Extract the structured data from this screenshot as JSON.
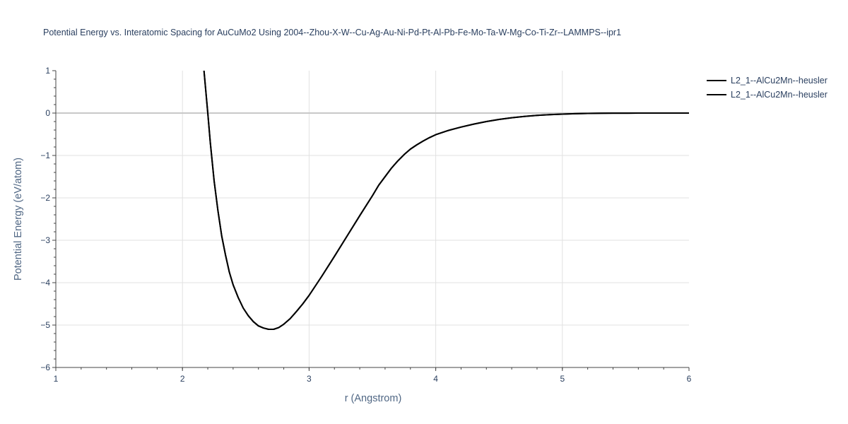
{
  "chart_data": {
    "type": "line",
    "title": "Potential Energy vs. Interatomic Spacing for AuCuMo2 Using 2004--Zhou-X-W--Cu-Ag-Au-Ni-Pd-Pt-Al-Pb-Fe-Mo-Ta-W-Mg-Co-Ti-Zr--LAMMPS--ipr1",
    "xlabel": "r (Angstrom)",
    "ylabel": "Potential Energy (eV/atom)",
    "xlim": [
      1,
      6
    ],
    "ylim": [
      -6,
      1
    ],
    "x_ticks": [
      "1",
      "2",
      "3",
      "4",
      "5",
      "6"
    ],
    "y_ticks": [
      "1",
      "0",
      "−1",
      "−2",
      "−3",
      "−4",
      "−5",
      "−6"
    ],
    "grid": true,
    "legend_position": "top-right",
    "series_color": "#000000",
    "series": [
      {
        "name": "L2_1--AlCu2Mn--heusler",
        "x": [
          2.17,
          2.2,
          2.22,
          2.25,
          2.28,
          2.31,
          2.34,
          2.37,
          2.4,
          2.44,
          2.48,
          2.52,
          2.56,
          2.6,
          2.64,
          2.68,
          2.72,
          2.76,
          2.8,
          2.85,
          2.9,
          2.95,
          3.0,
          3.1,
          3.2,
          3.3,
          3.4,
          3.5,
          3.55,
          3.6,
          3.65,
          3.7,
          3.75,
          3.8,
          3.85,
          3.9,
          3.95,
          4.0,
          4.1,
          4.2,
          4.3,
          4.4,
          4.5,
          4.6,
          4.7,
          4.8,
          4.9,
          5.0,
          5.1,
          5.2,
          5.3,
          5.4,
          5.5,
          5.6,
          5.7,
          5.8,
          5.9,
          6.0
        ],
        "y": [
          1.0,
          0.0,
          -0.7,
          -1.6,
          -2.3,
          -2.9,
          -3.35,
          -3.75,
          -4.05,
          -4.35,
          -4.6,
          -4.78,
          -4.92,
          -5.02,
          -5.07,
          -5.1,
          -5.1,
          -5.06,
          -4.98,
          -4.85,
          -4.68,
          -4.5,
          -4.3,
          -3.85,
          -3.38,
          -2.9,
          -2.42,
          -1.95,
          -1.7,
          -1.5,
          -1.3,
          -1.13,
          -0.98,
          -0.85,
          -0.75,
          -0.66,
          -0.58,
          -0.51,
          -0.41,
          -0.33,
          -0.26,
          -0.2,
          -0.15,
          -0.11,
          -0.08,
          -0.055,
          -0.037,
          -0.024,
          -0.015,
          -0.009,
          -0.005,
          -0.003,
          -0.002,
          -0.001,
          0.0,
          0.0,
          0.0,
          0.0
        ]
      },
      {
        "name": "L2_1--AlCu2Mn--heusler",
        "x": [
          2.17,
          2.2,
          2.22,
          2.25,
          2.28,
          2.31,
          2.34,
          2.37,
          2.4,
          2.44,
          2.48,
          2.52,
          2.56,
          2.6,
          2.64,
          2.68,
          2.72,
          2.76,
          2.8,
          2.85,
          2.9,
          2.95,
          3.0,
          3.1,
          3.2,
          3.3,
          3.4,
          3.5,
          3.55,
          3.6,
          3.65,
          3.7,
          3.75,
          3.8,
          3.85,
          3.9,
          3.95,
          4.0,
          4.1,
          4.2,
          4.3,
          4.4,
          4.5,
          4.6,
          4.7,
          4.8,
          4.9,
          5.0,
          5.1,
          5.2,
          5.3,
          5.4,
          5.5,
          5.6,
          5.7,
          5.8,
          5.9,
          6.0
        ],
        "y": [
          1.0,
          0.0,
          -0.7,
          -1.6,
          -2.3,
          -2.9,
          -3.35,
          -3.75,
          -4.05,
          -4.35,
          -4.6,
          -4.78,
          -4.92,
          -5.02,
          -5.07,
          -5.1,
          -5.1,
          -5.06,
          -4.98,
          -4.85,
          -4.68,
          -4.5,
          -4.3,
          -3.85,
          -3.38,
          -2.9,
          -2.42,
          -1.95,
          -1.7,
          -1.5,
          -1.3,
          -1.13,
          -0.98,
          -0.85,
          -0.75,
          -0.66,
          -0.58,
          -0.51,
          -0.41,
          -0.33,
          -0.26,
          -0.2,
          -0.15,
          -0.11,
          -0.08,
          -0.055,
          -0.037,
          -0.024,
          -0.015,
          -0.009,
          -0.005,
          -0.003,
          -0.002,
          -0.001,
          0.0,
          0.0,
          0.0,
          0.0
        ]
      }
    ]
  }
}
